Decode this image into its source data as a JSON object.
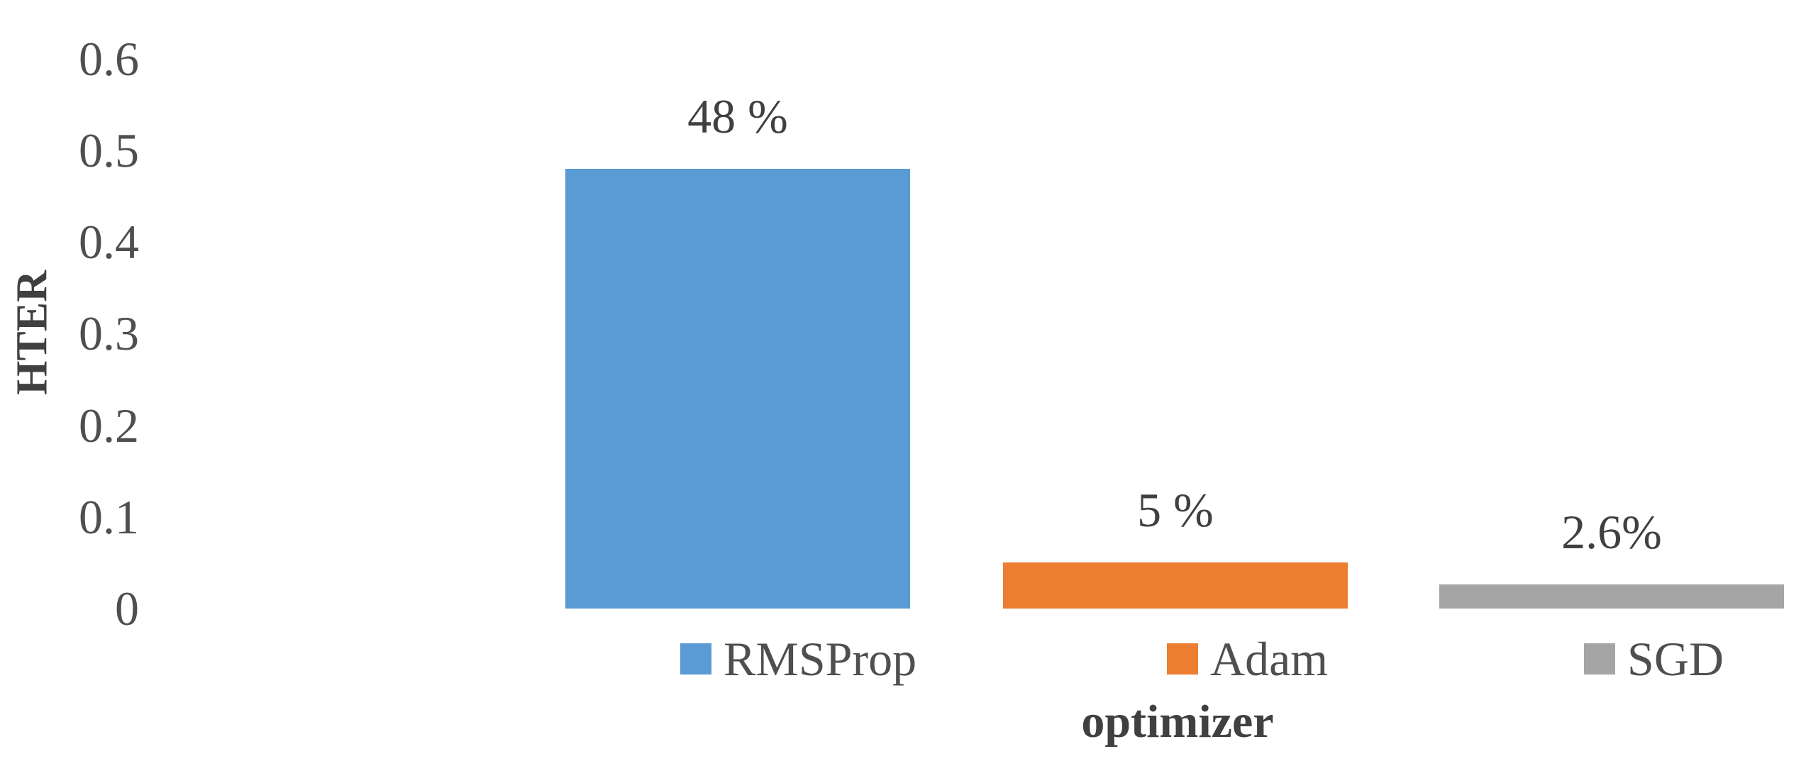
{
  "figure": {
    "background_color": "#ffffff",
    "axis_text_color": "#4f4f4f",
    "title_text_color": "#404040"
  },
  "chart_data": {
    "type": "bar",
    "title": "",
    "xlabel": "optimizer",
    "ylabel": "HTER",
    "categories": [
      "RMSProp",
      "Adam",
      "SGD"
    ],
    "values": [
      0.48,
      0.05,
      0.026
    ],
    "data_labels": [
      "48 %",
      "5 %",
      "2.6%"
    ],
    "series_colors": [
      "#5b9bd5",
      "#ed7d31",
      "#a5a5a5"
    ],
    "ylim": [
      0,
      0.6
    ],
    "yticks": [
      0,
      0.1,
      0.2,
      0.3,
      0.4,
      0.5,
      0.6
    ],
    "ytick_labels": [
      "0",
      "0.1",
      "0.2",
      "0.3",
      "0.4",
      "0.5",
      "0.6"
    ],
    "grid": false,
    "axis_lines": false,
    "legend_position": "bottom",
    "legend_items": [
      {
        "label": "RMSProp",
        "color": "#5b9bd5"
      },
      {
        "label": "Adam",
        "color": "#ed7d31"
      },
      {
        "label": "SGD",
        "color": "#a5a5a5"
      }
    ]
  }
}
